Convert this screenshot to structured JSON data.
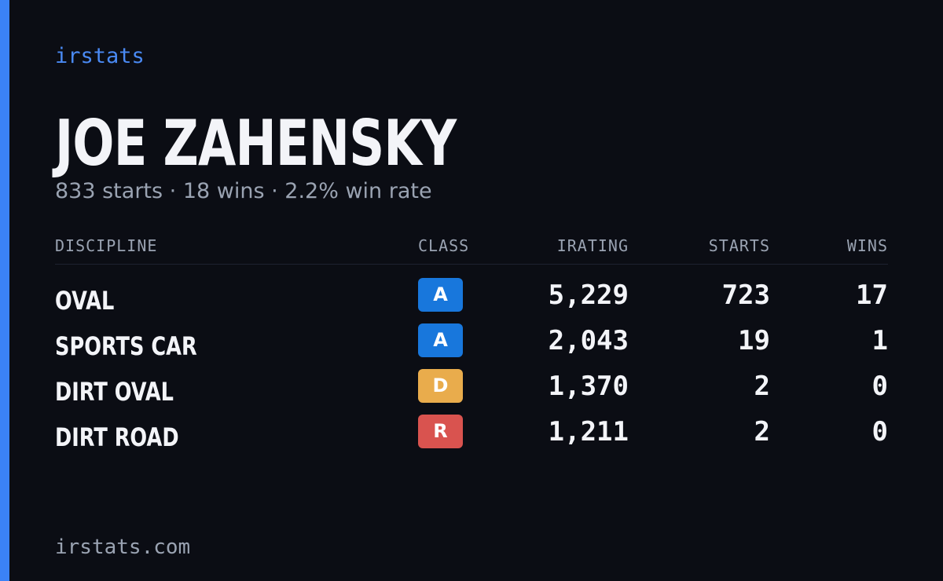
{
  "brand": "irstats",
  "name": "JOE ZAHENSKY",
  "summary": "833 starts · 18 wins · 2.2% win rate",
  "table": {
    "columns": [
      "DISCIPLINE",
      "CLASS",
      "IRATING",
      "STARTS",
      "WINS"
    ],
    "rows": [
      {
        "discipline": "OVAL",
        "class": "A",
        "class_color": "#1877dc",
        "irating": "5,229",
        "starts": "723",
        "wins": "17"
      },
      {
        "discipline": "SPORTS CAR",
        "class": "A",
        "class_color": "#1877dc",
        "irating": "2,043",
        "starts": "19",
        "wins": "1"
      },
      {
        "discipline": "DIRT OVAL",
        "class": "D",
        "class_color": "#e9ac4c",
        "irating": "1,370",
        "starts": "2",
        "wins": "0"
      },
      {
        "discipline": "DIRT ROAD",
        "class": "R",
        "class_color": "#d9534f",
        "irating": "1,211",
        "starts": "2",
        "wins": "0"
      }
    ]
  },
  "footer": "irstats.com"
}
